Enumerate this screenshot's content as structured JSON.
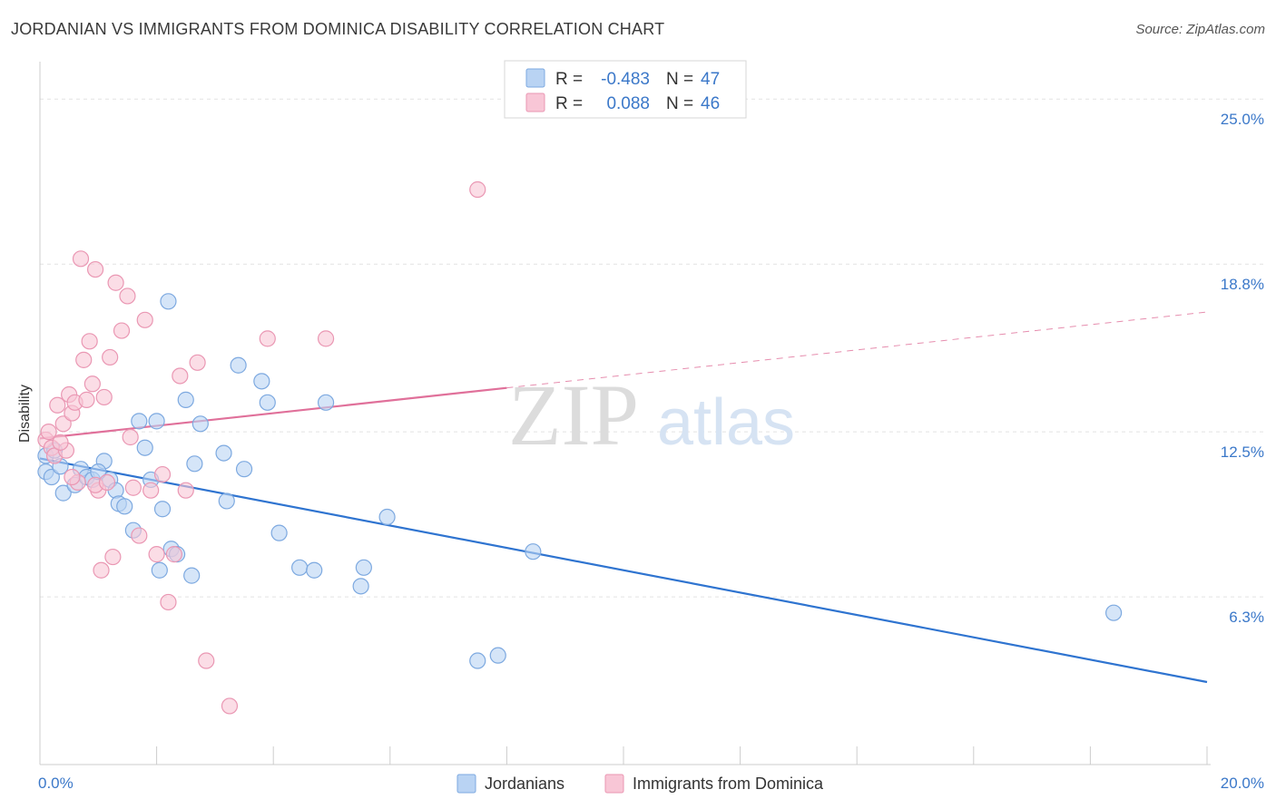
{
  "title": "JORDANIAN VS IMMIGRANTS FROM DOMINICA DISABILITY CORRELATION CHART",
  "source": "Source: ZipAtlas.com",
  "watermark": {
    "zip": "ZIP",
    "atlas": "atlas"
  },
  "legend_top": {
    "rows": [
      {
        "r_label": "R = ",
        "r_value": "-0.483",
        "n_label": "N = ",
        "n_value": "47"
      },
      {
        "r_label": "R = ",
        "r_value": "0.088",
        "n_label": "N = ",
        "n_value": "46"
      }
    ]
  },
  "chart_data": {
    "type": "scatter",
    "title": "JORDANIAN VS IMMIGRANTS FROM DOMINICA DISABILITY CORRELATION CHART",
    "xlabel": "",
    "ylabel": "Disability",
    "xlim": [
      0,
      20
    ],
    "ylim": [
      0,
      26.2
    ],
    "x_tick_labels": [
      {
        "value": 0,
        "label": "0.0%"
      },
      {
        "value": 20,
        "label": "20.0%"
      }
    ],
    "y_tick_labels": [
      {
        "value": 6.3,
        "label": "6.3%"
      },
      {
        "value": 12.5,
        "label": "12.5%"
      },
      {
        "value": 18.8,
        "label": "18.8%"
      },
      {
        "value": 25.0,
        "label": "25.0%"
      }
    ],
    "x_minor_ticks": [
      0,
      2,
      4,
      6,
      8,
      10,
      12,
      14,
      16,
      18,
      20
    ],
    "grid": true,
    "legend_placement": "bottom-center",
    "colors": {
      "blue_fill": "#b9d3f3",
      "blue_stroke": "#7da9e0",
      "blue_line": "#2f74d0",
      "pink_fill": "#f8c6d6",
      "pink_stroke": "#ea97b3",
      "pink_line": "#e0709a",
      "value_text": "#3b78c9",
      "grid": "#e2e2e2"
    },
    "series": [
      {
        "name": "Jordanians",
        "color": "blue",
        "trend": {
          "x": [
            0,
            20
          ],
          "y": [
            11.5,
            3.1
          ],
          "dashed_from": null
        },
        "points": [
          [
            0.1,
            11.0
          ],
          [
            0.2,
            10.8
          ],
          [
            0.35,
            11.2
          ],
          [
            0.4,
            10.2
          ],
          [
            0.6,
            10.5
          ],
          [
            0.7,
            11.1
          ],
          [
            0.8,
            10.8
          ],
          [
            0.9,
            10.7
          ],
          [
            1.1,
            11.4
          ],
          [
            1.2,
            10.7
          ],
          [
            1.3,
            10.3
          ],
          [
            1.35,
            9.8
          ],
          [
            1.45,
            9.7
          ],
          [
            1.6,
            8.8
          ],
          [
            1.7,
            12.9
          ],
          [
            1.8,
            11.9
          ],
          [
            1.9,
            10.7
          ],
          [
            2.0,
            12.9
          ],
          [
            2.05,
            7.3
          ],
          [
            2.1,
            9.6
          ],
          [
            2.2,
            17.4
          ],
          [
            2.25,
            8.1
          ],
          [
            2.35,
            7.9
          ],
          [
            2.5,
            13.7
          ],
          [
            2.6,
            7.1
          ],
          [
            2.65,
            11.3
          ],
          [
            2.75,
            12.8
          ],
          [
            3.15,
            11.7
          ],
          [
            3.2,
            9.9
          ],
          [
            3.4,
            15.0
          ],
          [
            3.5,
            11.1
          ],
          [
            3.8,
            14.4
          ],
          [
            3.9,
            13.6
          ],
          [
            4.1,
            8.7
          ],
          [
            4.45,
            7.4
          ],
          [
            4.7,
            7.3
          ],
          [
            4.9,
            13.6
          ],
          [
            5.5,
            6.7
          ],
          [
            5.55,
            7.4
          ],
          [
            5.95,
            9.3
          ],
          [
            7.5,
            3.9
          ],
          [
            7.85,
            4.1
          ],
          [
            8.45,
            8.0
          ],
          [
            18.4,
            5.7
          ],
          [
            0.1,
            11.6
          ],
          [
            0.25,
            11.8
          ],
          [
            1.0,
            11.0
          ]
        ]
      },
      {
        "name": "Immigrants from Dominica",
        "color": "pink",
        "trend": {
          "x": [
            0,
            20
          ],
          "y": [
            12.25,
            17.0
          ],
          "dashed_from": 8.0
        },
        "points": [
          [
            0.1,
            12.2
          ],
          [
            0.15,
            12.5
          ],
          [
            0.2,
            11.9
          ],
          [
            0.25,
            11.6
          ],
          [
            0.3,
            13.5
          ],
          [
            0.4,
            12.8
          ],
          [
            0.45,
            11.8
          ],
          [
            0.5,
            13.9
          ],
          [
            0.55,
            13.2
          ],
          [
            0.6,
            13.6
          ],
          [
            0.65,
            10.6
          ],
          [
            0.7,
            19.0
          ],
          [
            0.75,
            15.2
          ],
          [
            0.8,
            13.7
          ],
          [
            0.85,
            15.9
          ],
          [
            0.9,
            14.3
          ],
          [
            0.95,
            18.6
          ],
          [
            1.0,
            10.3
          ],
          [
            1.05,
            7.3
          ],
          [
            1.1,
            13.8
          ],
          [
            1.2,
            15.3
          ],
          [
            1.25,
            7.8
          ],
          [
            1.3,
            18.1
          ],
          [
            1.4,
            16.3
          ],
          [
            1.5,
            17.6
          ],
          [
            1.55,
            12.3
          ],
          [
            1.6,
            10.4
          ],
          [
            1.7,
            8.6
          ],
          [
            1.8,
            16.7
          ],
          [
            1.9,
            10.3
          ],
          [
            2.0,
            7.9
          ],
          [
            2.1,
            10.9
          ],
          [
            2.2,
            6.1
          ],
          [
            2.3,
            7.9
          ],
          [
            2.4,
            14.6
          ],
          [
            2.5,
            10.3
          ],
          [
            2.7,
            15.1
          ],
          [
            2.85,
            3.9
          ],
          [
            3.25,
            2.2
          ],
          [
            3.9,
            16.0
          ],
          [
            4.9,
            16.0
          ],
          [
            7.5,
            21.6
          ],
          [
            0.35,
            12.1
          ],
          [
            0.55,
            10.8
          ],
          [
            0.95,
            10.5
          ],
          [
            1.15,
            10.6
          ]
        ]
      }
    ]
  },
  "legend_bottom": {
    "items": [
      {
        "label": "Jordanians"
      },
      {
        "label": "Immigrants from Dominica"
      }
    ]
  }
}
